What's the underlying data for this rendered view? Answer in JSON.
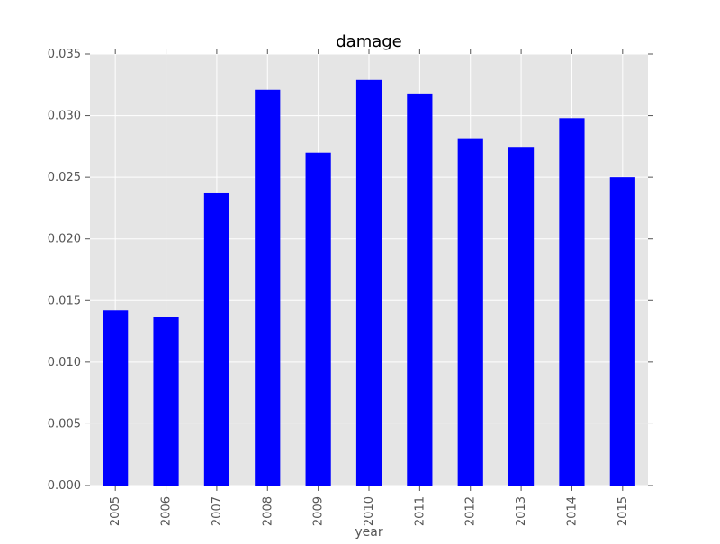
{
  "chart_data": {
    "type": "bar",
    "title": "damage",
    "xlabel": "year",
    "ylabel": "",
    "categories": [
      "2005",
      "2006",
      "2007",
      "2008",
      "2009",
      "2010",
      "2011",
      "2012",
      "2013",
      "2014",
      "2015"
    ],
    "values": [
      0.0142,
      0.0137,
      0.0237,
      0.0321,
      0.027,
      0.0329,
      0.0318,
      0.0281,
      0.0274,
      0.0298,
      0.025
    ],
    "ylim": [
      0,
      0.035
    ],
    "yticks": [
      "0.000",
      "0.005",
      "0.010",
      "0.015",
      "0.020",
      "0.025",
      "0.030",
      "0.035"
    ],
    "grid": true,
    "legend": "none",
    "colors": {
      "bar": "#0000ff",
      "plot_background": "#e5e5e5",
      "grid": "#ffffff"
    }
  }
}
